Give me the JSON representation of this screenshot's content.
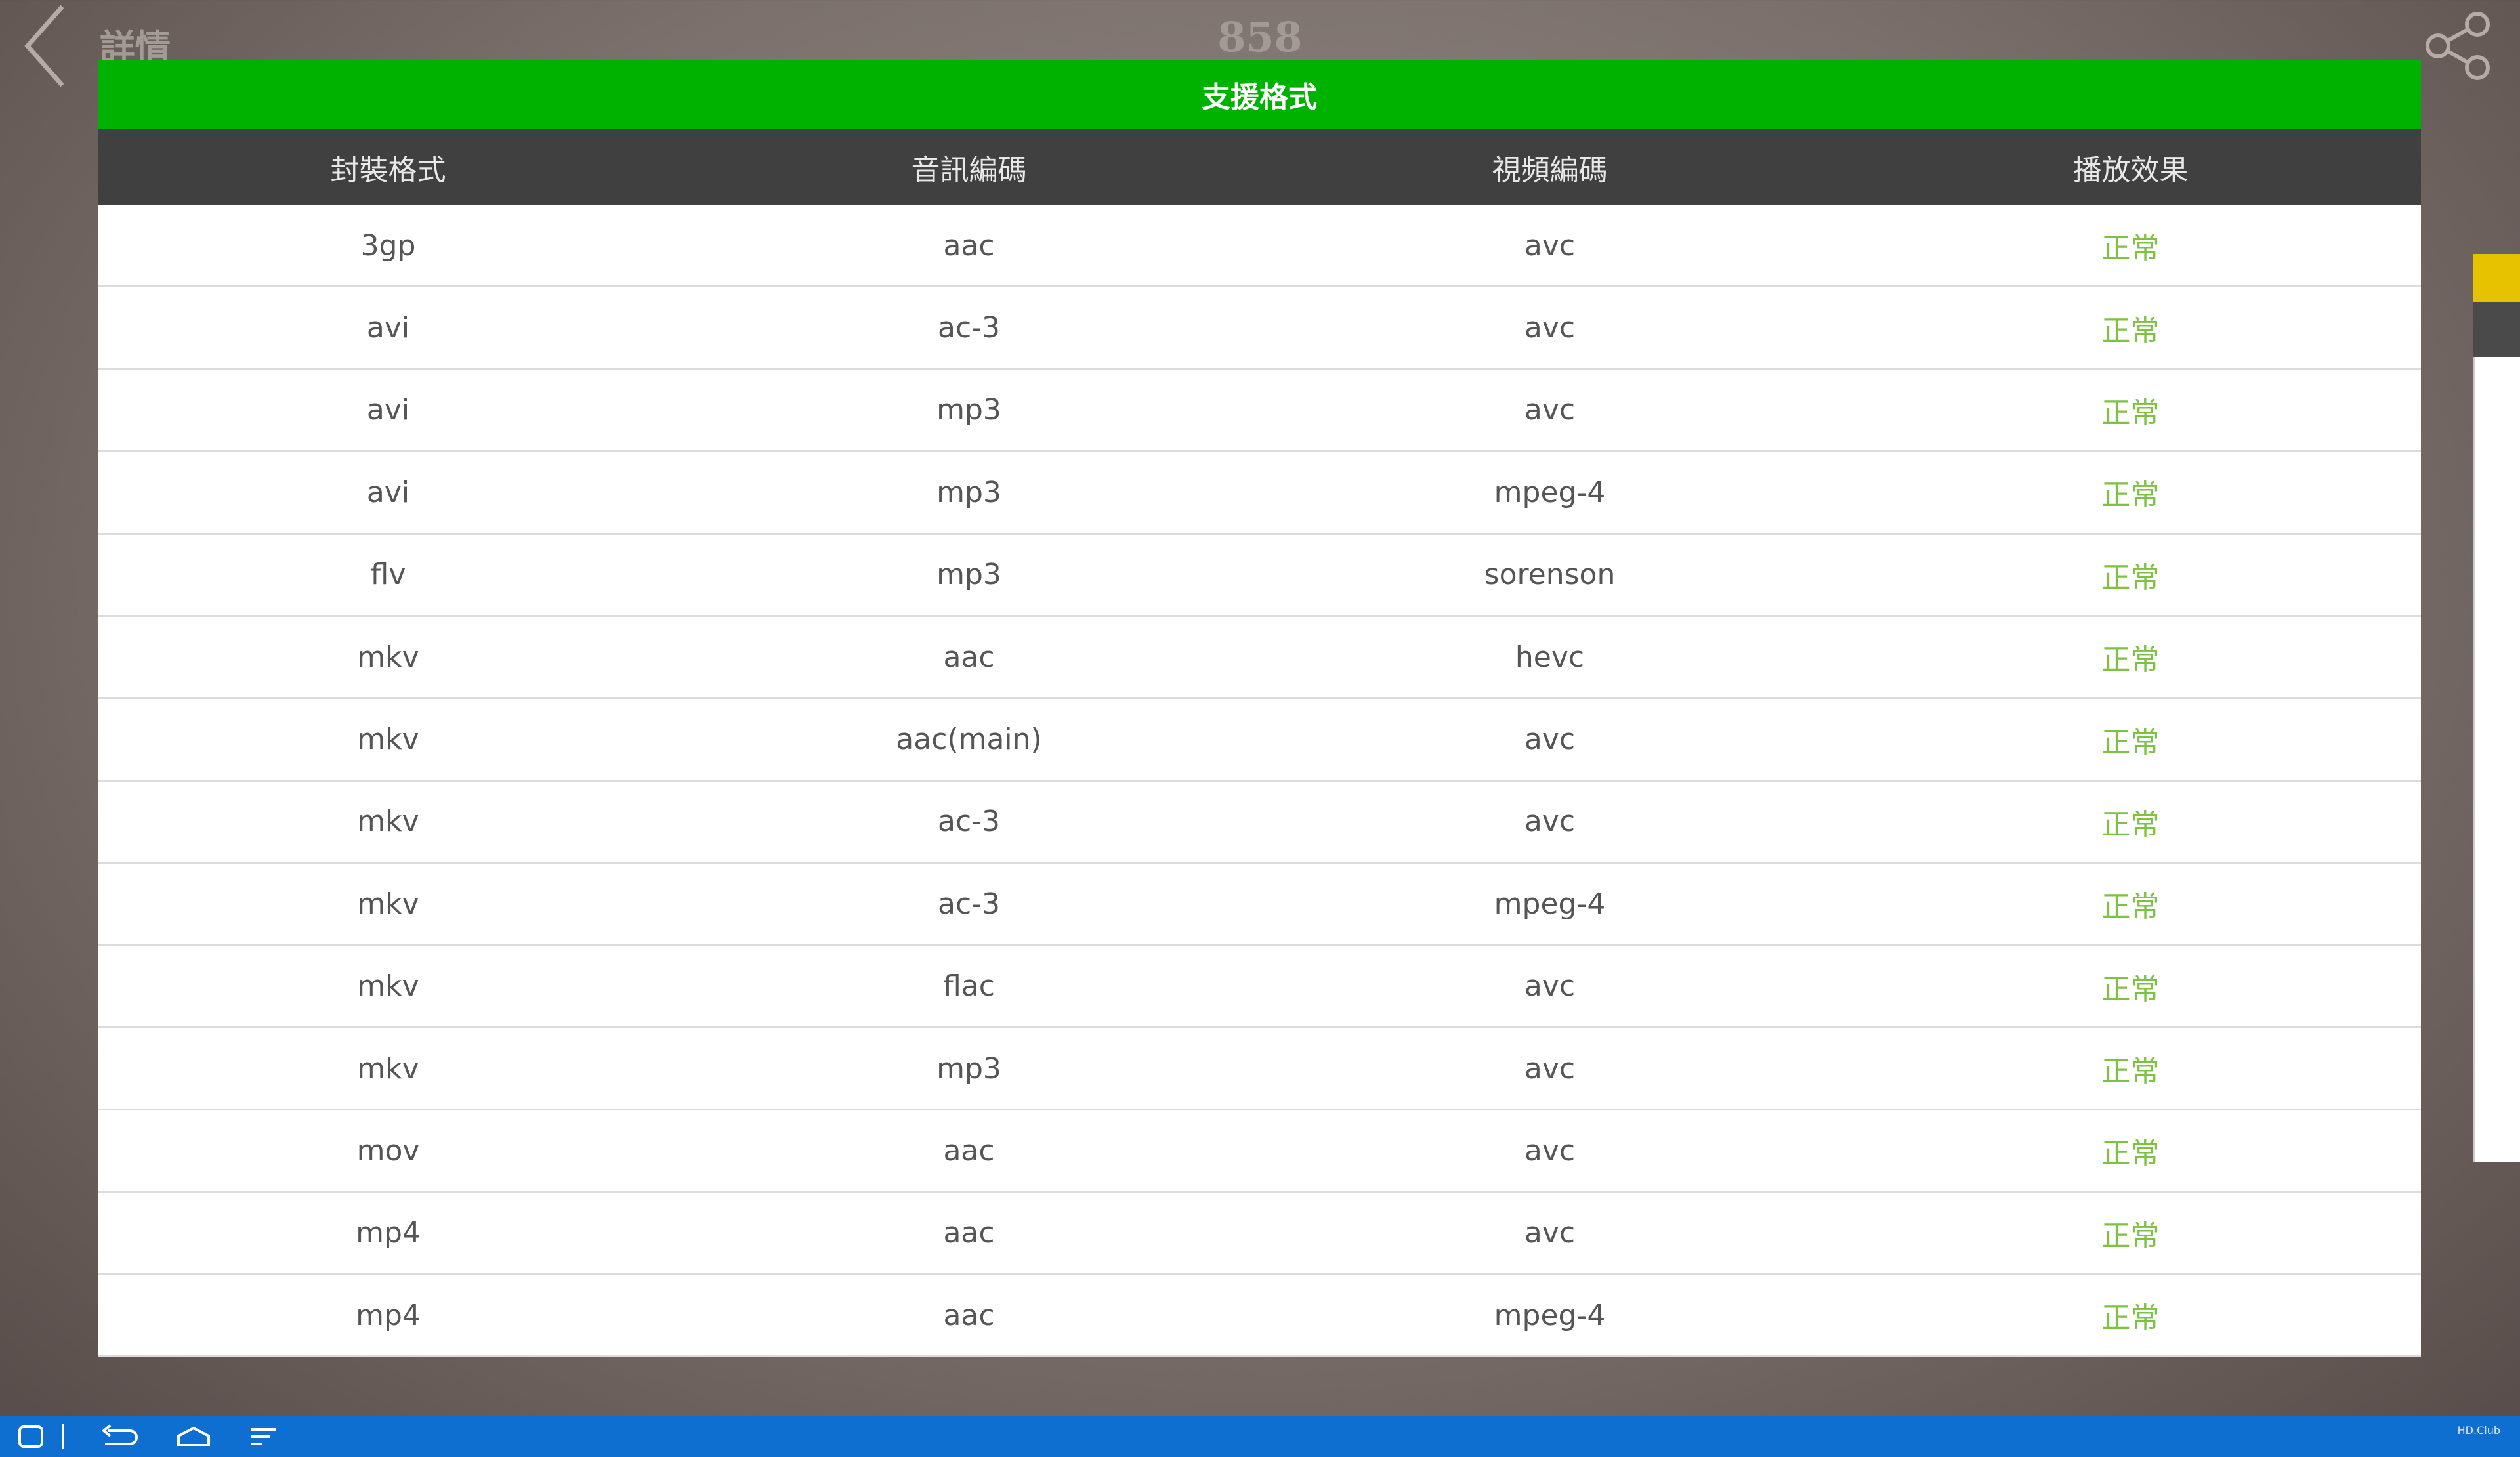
{
  "header": {
    "back_label": "詳情",
    "title": "858"
  },
  "table": {
    "title": "支援格式",
    "columns": [
      "封裝格式",
      "音訊編碼",
      "視頻編碼",
      "播放效果"
    ],
    "rows": [
      [
        "3gp",
        "aac",
        "avc",
        "正常"
      ],
      [
        "avi",
        "ac-3",
        "avc",
        "正常"
      ],
      [
        "avi",
        "mp3",
        "avc",
        "正常"
      ],
      [
        "avi",
        "mp3",
        "mpeg-4",
        "正常"
      ],
      [
        "flv",
        "mp3",
        "sorenson",
        "正常"
      ],
      [
        "mkv",
        "aac",
        "hevc",
        "正常"
      ],
      [
        "mkv",
        "aac(main)",
        "avc",
        "正常"
      ],
      [
        "mkv",
        "ac-3",
        "avc",
        "正常"
      ],
      [
        "mkv",
        "ac-3",
        "mpeg-4",
        "正常"
      ],
      [
        "mkv",
        "flac",
        "avc",
        "正常"
      ],
      [
        "mkv",
        "mp3",
        "avc",
        "正常"
      ],
      [
        "mov",
        "aac",
        "avc",
        "正常"
      ],
      [
        "mp4",
        "aac",
        "avc",
        "正常"
      ],
      [
        "mp4",
        "aac",
        "mpeg-4",
        "正常"
      ]
    ]
  },
  "footer": {
    "watermark": "HD.Club"
  }
}
